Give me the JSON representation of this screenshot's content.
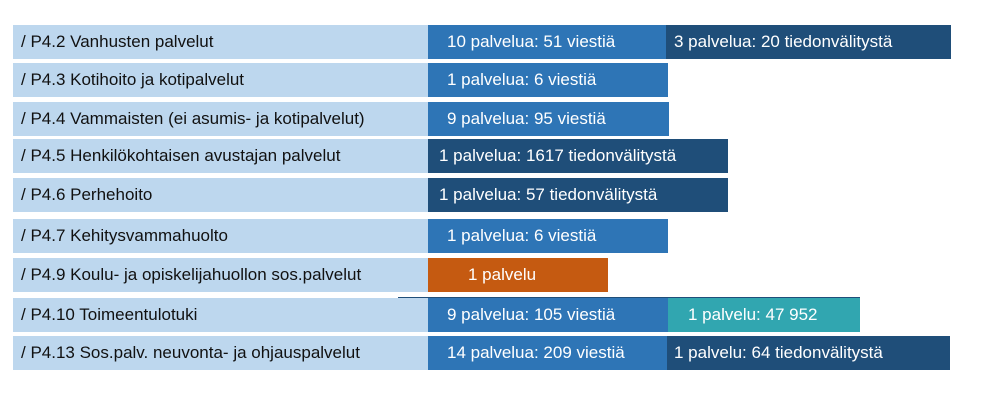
{
  "colors": {
    "label_bg": "#bdd7ee",
    "blue": "#2e75b6",
    "dark_blue": "#1f4e79",
    "orange": "#c55a11",
    "teal": "#31a6b0"
  },
  "rows": [
    {
      "label": "/ P4.2 Vanhusten palvelut",
      "seg1": "10 palvelua: 51 viestiä",
      "seg2": "3 palvelua: 20 tiedonvälitystä"
    },
    {
      "label": "/ P4.3 Kotihoito ja kotipalvelut",
      "seg1": "1 palvelua: 6 viestiä"
    },
    {
      "label": "/ P4.4 Vammaisten (ei asumis- ja kotipalvelut)",
      "seg1": "9 palvelua: 95 viestiä"
    },
    {
      "label": "/  P4.5 Henkilökohtaisen avustajan palvelut",
      "seg1": "1 palvelua: 1617 tiedonvälitystä"
    },
    {
      "label": "/ P4.6 Perhehoito",
      "seg1": "1 palvelua: 57 tiedonvälitystä"
    },
    {
      "label": "/ P4.7 Kehitysvammahuolto",
      "seg1": "1 palvelua: 6 viestiä"
    },
    {
      "label": "/ P4.9 Koulu- ja opiskelijahuollon sos.palvelut",
      "seg1": "1 palvelu"
    },
    {
      "label": "/ P4.10 Toimeentulotuki",
      "seg1": "9 palvelua: 105 viestiä",
      "seg2": "1 palvelu: 47 952"
    },
    {
      "label": "/ P4.13 Sos.palv. neuvonta- ja ohjauspalvelut",
      "seg1": "14 palvelua: 209 viestiä",
      "seg2": "1 palvelu: 64 tiedonvälitystä"
    }
  ]
}
